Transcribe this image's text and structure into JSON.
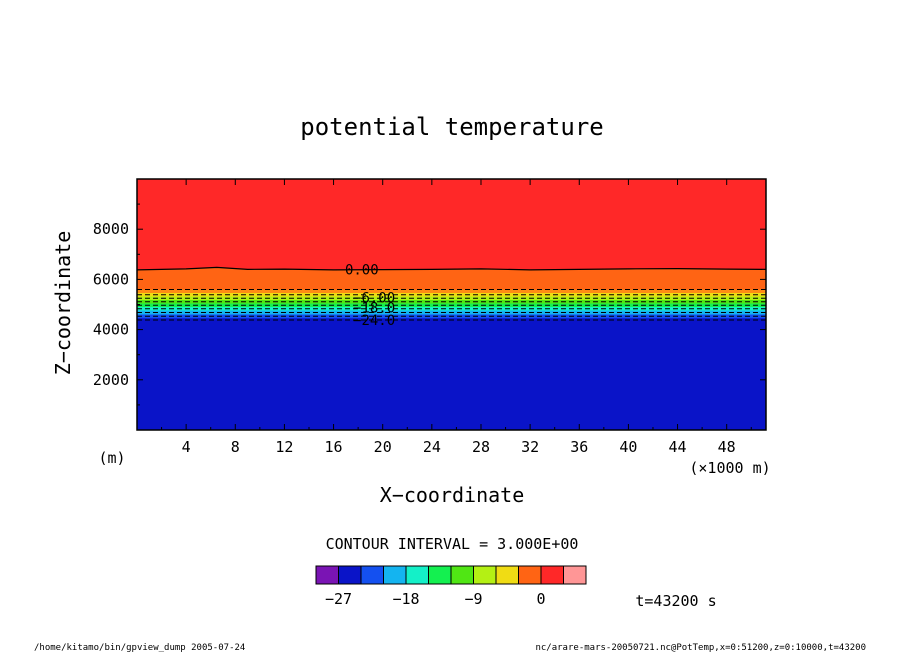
{
  "chart_data": {
    "type": "heatmap",
    "title": "potential temperature",
    "xlabel": "X−coordinate",
    "ylabel": "Z−coordinate",
    "x_unit": "(×1000 m)",
    "y_unit": "(m)",
    "xlim": [
      0,
      51.2
    ],
    "ylim": [
      0,
      10000
    ],
    "x_ticks": [
      4,
      8,
      12,
      16,
      20,
      24,
      28,
      32,
      36,
      40,
      44,
      48
    ],
    "y_ticks": [
      2000,
      4000,
      6000,
      8000
    ],
    "x_tick_labels": [
      "4",
      "8",
      "12",
      "16",
      "20",
      "24",
      "28",
      "32",
      "36",
      "40",
      "44",
      "48"
    ],
    "y_tick_labels": [
      "2000",
      "4000",
      "6000",
      "8000"
    ],
    "contour_interval_text": "CONTOUR INTERVAL = 3.000E+00",
    "bands": [
      {
        "level": -27,
        "top_z": 4450,
        "color": "#0a14c8"
      },
      {
        "level": -24,
        "top_z": 4600,
        "color": "#1450f0"
      },
      {
        "level": -21,
        "top_z": 4760,
        "color": "#14b4f0"
      },
      {
        "level": -18,
        "top_z": 4900,
        "color": "#14f0c8"
      },
      {
        "level": -15,
        "top_z": 5040,
        "color": "#14f050"
      },
      {
        "level": -12,
        "top_z": 5180,
        "color": "#50e614"
      },
      {
        "level": -9,
        "top_z": 5320,
        "color": "#b4f014"
      },
      {
        "level": -6,
        "top_z": 5460,
        "color": "#f0dc14"
      },
      {
        "level": -3,
        "top_z": 5600,
        "color": "#ff8c14"
      },
      {
        "level": 0,
        "top_z": 6400,
        "color": "#ff6414"
      },
      {
        "level": 3,
        "top_z": 10000,
        "color": "#ff2828"
      }
    ],
    "zero_contour": {
      "x": [
        0,
        4,
        6.5,
        9,
        12,
        16,
        20,
        24,
        28,
        32,
        36,
        40,
        44,
        48,
        51.2
      ],
      "z": [
        6380,
        6420,
        6480,
        6400,
        6410,
        6380,
        6390,
        6400,
        6420,
        6380,
        6400,
        6420,
        6430,
        6410,
        6400
      ]
    },
    "dashed_contours_z": [
      4380,
      4530,
      4680,
      4830,
      4970,
      5110,
      5250,
      5390,
      5600
    ],
    "contour_labels": [
      {
        "text": "0.00",
        "x": 18.3,
        "z": 6400
      },
      {
        "text": "−6.00",
        "x": 19.3,
        "z": 5280
      },
      {
        "text": "−18.0",
        "x": 19.3,
        "z": 4880
      },
      {
        "text": "−24.0",
        "x": 19.3,
        "z": 4380
      }
    ],
    "colorbar": {
      "colors": [
        "#7a14b4",
        "#0a14c8",
        "#1450f0",
        "#14b4f0",
        "#14f0c8",
        "#14f050",
        "#50e614",
        "#b4f014",
        "#f0dc14",
        "#ff6414",
        "#ff2828",
        "#ff9696"
      ],
      "tick_labels": [
        "−27",
        "−18",
        "−9",
        "0"
      ],
      "tick_positions": [
        1,
        4,
        7,
        10
      ]
    }
  },
  "footer": {
    "time_label": "t=43200 s",
    "left_text": "/home/kitamo/bin/gpview_dump  2005-07-24",
    "right_text": "nc/arare-mars-20050721.nc@PotTemp,x=0:51200,z=0:10000,t=43200"
  }
}
